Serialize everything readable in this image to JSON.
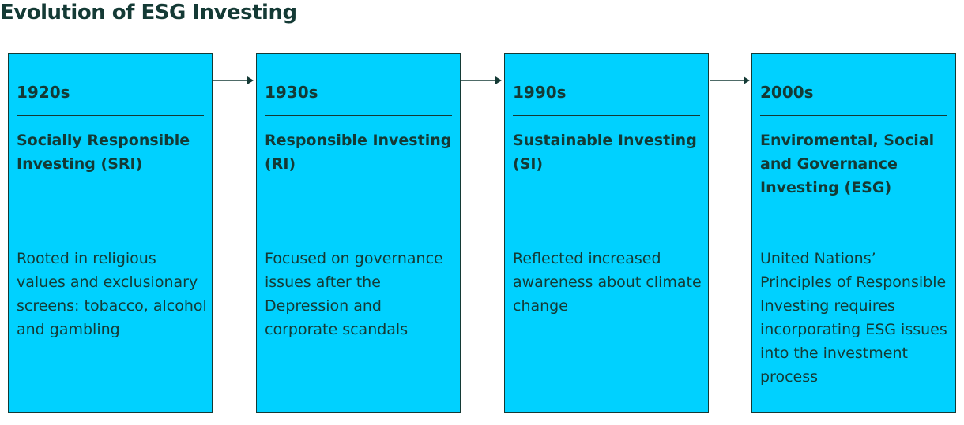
{
  "title": "Evolution of ESG Investing",
  "colors": {
    "card_fill": "#00d1ff",
    "text": "#143a35",
    "background": "#ffffff"
  },
  "stages": [
    {
      "era": "1920s",
      "name": "Socially Responsible Investing (SRI)",
      "description": "Rooted in religious values and exclusionary screens: tobacco, alcohol and gambling"
    },
    {
      "era": "1930s",
      "name": "Responsible Investing (RI)",
      "description": "Focused on governance issues after the Depression and corporate scandals"
    },
    {
      "era": "1990s",
      "name": "Sustainable Investing (SI)",
      "description": "Reflected increased awareness about climate change"
    },
    {
      "era": "2000s",
      "name": "Enviromental, Social and Governance Investing (ESG)",
      "description": "United Nations’ Principles of Responsible Investing requires incorporating ESG issues into the investment process"
    }
  ],
  "connector_icon": "right-arrow-icon"
}
